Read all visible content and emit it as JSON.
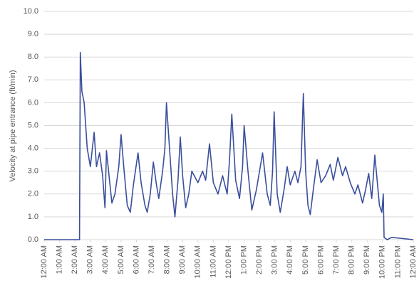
{
  "chart_data": {
    "type": "line",
    "y_label": "Velocity at pipe entrance (ft/min)",
    "xlim": [
      0,
      24
    ],
    "xticks": [
      {
        "value": 0,
        "label": "12:00 AM"
      },
      {
        "value": 1,
        "label": "1:00 AM"
      },
      {
        "value": 2,
        "label": "2:00 AM"
      },
      {
        "value": 3,
        "label": "3:00 AM"
      },
      {
        "value": 4,
        "label": "4:00 AM"
      },
      {
        "value": 5,
        "label": "5:00 AM"
      },
      {
        "value": 6,
        "label": "6:00 AM"
      },
      {
        "value": 7,
        "label": "7:00 AM"
      },
      {
        "value": 8,
        "label": "8:00 AM"
      },
      {
        "value": 9,
        "label": "9:00 AM"
      },
      {
        "value": 10,
        "label": "10:00 AM"
      },
      {
        "value": 11,
        "label": "11:00 AM"
      },
      {
        "value": 12,
        "label": "12:00 PM"
      },
      {
        "value": 13,
        "label": "1:00 PM"
      },
      {
        "value": 14,
        "label": "2:00 PM"
      },
      {
        "value": 15,
        "label": "3:00 PM"
      },
      {
        "value": 16,
        "label": "4:00 PM"
      },
      {
        "value": 17,
        "label": "5:00 PM"
      },
      {
        "value": 18,
        "label": "6:00 PM"
      },
      {
        "value": 19,
        "label": "7:00 PM"
      },
      {
        "value": 20,
        "label": "8:00 PM"
      },
      {
        "value": 21,
        "label": "9:00 PM"
      },
      {
        "value": 22,
        "label": "10:00 PM"
      },
      {
        "value": 23,
        "label": "11:00 PM"
      },
      {
        "value": 24,
        "label": "12:00 AM"
      }
    ],
    "ylim": [
      0,
      10
    ],
    "yticks": [
      {
        "value": 0,
        "label": "0.0"
      },
      {
        "value": 1,
        "label": "1.0"
      },
      {
        "value": 2,
        "label": "2.0"
      },
      {
        "value": 3,
        "label": "3.0"
      },
      {
        "value": 4,
        "label": "4.0"
      },
      {
        "value": 5,
        "label": "5.0"
      },
      {
        "value": 6,
        "label": "6.0"
      },
      {
        "value": 7,
        "label": "7.0"
      },
      {
        "value": 8,
        "label": "8.0"
      },
      {
        "value": 9,
        "label": "9.0"
      },
      {
        "value": 10,
        "label": "10.0"
      }
    ],
    "grid": true,
    "color": "#3a4f9c",
    "x": [
      0,
      2.3,
      2.35,
      2.45,
      2.6,
      2.8,
      3.0,
      3.25,
      3.4,
      3.6,
      3.8,
      3.95,
      4.05,
      4.4,
      4.6,
      4.85,
      5.0,
      5.2,
      5.4,
      5.6,
      5.8,
      6.1,
      6.3,
      6.55,
      6.7,
      6.9,
      7.1,
      7.3,
      7.45,
      7.7,
      7.85,
      7.95,
      8.15,
      8.35,
      8.5,
      8.7,
      8.85,
      9.0,
      9.2,
      9.4,
      9.6,
      10.0,
      10.3,
      10.5,
      10.75,
      11.0,
      11.3,
      11.6,
      11.9,
      12.05,
      12.2,
      12.45,
      12.7,
      12.9,
      13.0,
      13.25,
      13.5,
      13.8,
      14.0,
      14.2,
      14.5,
      14.7,
      14.85,
      14.95,
      15.15,
      15.35,
      15.6,
      15.8,
      16.0,
      16.3,
      16.5,
      16.7,
      16.85,
      17.0,
      17.15,
      17.3,
      17.5,
      17.75,
      18.0,
      18.3,
      18.6,
      18.8,
      19.1,
      19.4,
      19.6,
      19.9,
      20.2,
      20.4,
      20.7,
      20.9,
      21.1,
      21.3,
      21.5,
      21.8,
      21.95,
      22.05,
      22.1,
      22.3,
      22.6,
      24
    ],
    "values": [
      0,
      0,
      8.2,
      6.5,
      6.0,
      4.0,
      3.2,
      4.7,
      3.2,
      3.8,
      2.8,
      1.4,
      3.9,
      1.6,
      2.0,
      3.2,
      4.6,
      3.0,
      1.5,
      1.2,
      2.4,
      3.8,
      2.5,
      1.5,
      1.2,
      2.0,
      3.4,
      2.4,
      1.8,
      3.0,
      4.0,
      6.0,
      4.0,
      2.0,
      1.0,
      2.6,
      4.5,
      2.8,
      1.4,
      2.0,
      3.0,
      2.5,
      3.0,
      2.6,
      4.2,
      2.5,
      2.0,
      2.8,
      2.0,
      3.5,
      5.5,
      2.6,
      1.8,
      3.2,
      5.0,
      3.0,
      1.3,
      2.2,
      3.0,
      3.8,
      2.0,
      1.5,
      3.0,
      5.6,
      2.0,
      1.2,
      2.2,
      3.2,
      2.4,
      3.0,
      2.5,
      3.2,
      6.4,
      3.0,
      1.5,
      1.1,
      2.2,
      3.5,
      2.5,
      2.8,
      3.3,
      2.6,
      3.6,
      2.8,
      3.2,
      2.5,
      2.0,
      2.4,
      1.6,
      2.2,
      2.9,
      1.8,
      3.7,
      1.5,
      1.2,
      2.0,
      0.1,
      0.0,
      0.1,
      0
    ]
  }
}
